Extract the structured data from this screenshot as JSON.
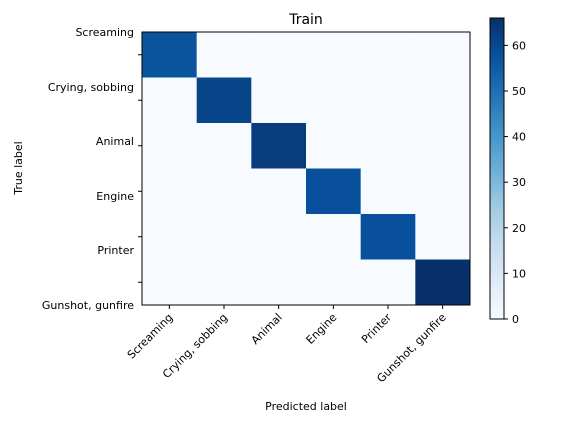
{
  "chart_data": {
    "type": "heatmap",
    "title": "Train",
    "xlabel": "Predicted label",
    "ylabel": "True label",
    "x_categories": [
      "Screaming",
      "Crying, sobbing",
      "Animal",
      "Engine",
      "Printer",
      "Gunshot, gunfire"
    ],
    "y_categories": [
      "Screaming",
      "Crying, sobbing",
      "Animal",
      "Engine",
      "Printer",
      "Gunshot, gunfire"
    ],
    "matrix": [
      [
        57,
        0,
        0,
        0,
        0,
        0
      ],
      [
        0,
        61,
        0,
        0,
        0,
        0
      ],
      [
        0,
        0,
        63,
        0,
        0,
        0
      ],
      [
        0,
        0,
        0,
        58,
        0,
        0
      ],
      [
        0,
        0,
        0,
        0,
        58,
        0
      ],
      [
        0,
        0,
        0,
        0,
        0,
        66
      ]
    ],
    "colormap": "Blues",
    "colorbar": {
      "min": 0,
      "max": 66,
      "ticks": [
        0,
        10,
        20,
        30,
        40,
        50,
        60
      ]
    },
    "grid": false
  }
}
